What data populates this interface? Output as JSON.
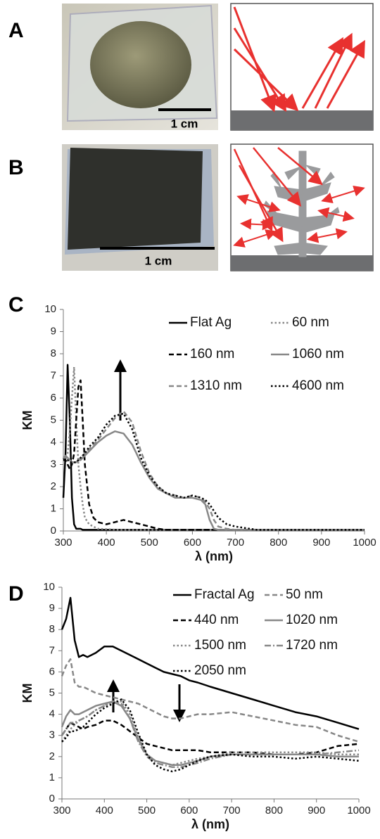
{
  "panels": [
    {
      "label": "A",
      "scale_bar": "1 cm"
    },
    {
      "label": "B",
      "scale_bar": "1 cm"
    }
  ],
  "chart_data": [
    {
      "type": "line",
      "label": "C",
      "ylabel": "KM",
      "xlabel": "λ (nm)",
      "xlim": [
        300,
        1000
      ],
      "xticks": [
        300,
        400,
        500,
        600,
        700,
        800,
        900,
        1000
      ],
      "ylim": [
        0,
        10
      ],
      "yticks": [
        0,
        1,
        2,
        3,
        4,
        5,
        6,
        7,
        8,
        9,
        10
      ],
      "legend": "top-right",
      "x": [
        300,
        305,
        310,
        315,
        320,
        325,
        330,
        335,
        340,
        345,
        350,
        360,
        370,
        380,
        400,
        420,
        440,
        460,
        480,
        500,
        520,
        540,
        560,
        580,
        600,
        620,
        630,
        640,
        650,
        660,
        680,
        700,
        750,
        800,
        900,
        1000
      ],
      "series": [
        {
          "name": "Flat Ag",
          "color": "#000000",
          "dash": "solid",
          "values": [
            1.5,
            3.5,
            7.5,
            5,
            1.5,
            0.3,
            0.1,
            0.1,
            0.1,
            0.05,
            0.05,
            0.05,
            0.05,
            0.05,
            0.05,
            0.05,
            0.05,
            0.05,
            0.05,
            0.05,
            0.05,
            0.05,
            0.05,
            0.05,
            0.05,
            0.05,
            0.05,
            0.05,
            0.05,
            0.05,
            0.05,
            0.05,
            0.05,
            0.05,
            0.05,
            0.05
          ]
        },
        {
          "name": "60 nm",
          "color": "#888888",
          "dash": "dotted",
          "values": [
            3.2,
            3.3,
            3.5,
            4.5,
            6,
            7.4,
            5,
            3,
            2,
            1.2,
            0.6,
            0.3,
            0.2,
            0.1,
            0.08,
            0.06,
            0.05,
            0.05,
            0.05,
            0.05,
            0.05,
            0.05,
            0.05,
            0.05,
            0.05,
            0.05,
            0.05,
            0.05,
            0.05,
            0.05,
            0.05,
            0.05,
            0.05,
            0.05,
            0.05,
            0.05
          ]
        },
        {
          "name": "160 nm",
          "color": "#000000",
          "dash": "dashed",
          "values": [
            3.3,
            3.2,
            3.0,
            2.8,
            3.0,
            3.5,
            5,
            6.5,
            6.8,
            5,
            3,
            1.2,
            0.6,
            0.4,
            0.3,
            0.4,
            0.5,
            0.4,
            0.3,
            0.2,
            0.1,
            0.05,
            0.05,
            0.05,
            0.05,
            0.05,
            0.05,
            0.05,
            0.05,
            0.05,
            0.05,
            0.05,
            0.05,
            0.05,
            0.05,
            0.05
          ]
        },
        {
          "name": "1060 nm",
          "color": "#888888",
          "dash": "solid",
          "values": [
            3.3,
            3.4,
            3.3,
            3.2,
            3.1,
            3.1,
            3.1,
            3.2,
            3.2,
            3.3,
            3.4,
            3.6,
            3.8,
            4.0,
            4.3,
            4.5,
            4.4,
            3.9,
            3.1,
            2.4,
            1.9,
            1.7,
            1.5,
            1.5,
            1.5,
            1.4,
            1.2,
            0.5,
            0.1,
            0.05,
            0.05,
            0.05,
            0.05,
            0.05,
            0.05,
            0.05
          ]
        },
        {
          "name": "1310 nm",
          "color": "#888888",
          "dash": "dashed",
          "values": [
            3.3,
            3.3,
            3.3,
            3.2,
            3.1,
            3.1,
            3.1,
            3.2,
            3.3,
            3.4,
            3.5,
            3.7,
            3.9,
            4.1,
            4.6,
            5.1,
            5.4,
            4.9,
            3.6,
            2.6,
            2.0,
            1.7,
            1.6,
            1.5,
            1.6,
            1.5,
            1.3,
            1.0,
            0.5,
            0.2,
            0.1,
            0.05,
            0.05,
            0.05,
            0.05,
            0.05
          ]
        },
        {
          "name": "4600 nm",
          "color": "#000000",
          "dash": "dotted",
          "values": [
            3.2,
            3.2,
            3.2,
            3.1,
            3.1,
            3.1,
            3.1,
            3.2,
            3.3,
            3.4,
            3.5,
            3.8,
            4.0,
            4.2,
            4.8,
            5.2,
            5.3,
            4.6,
            3.3,
            2.5,
            2.0,
            1.7,
            1.6,
            1.5,
            1.6,
            1.5,
            1.4,
            1.2,
            0.9,
            0.6,
            0.3,
            0.2,
            0.05,
            0.05,
            0.05,
            0.05
          ]
        }
      ]
    },
    {
      "type": "line",
      "label": "D",
      "ylabel": "KM",
      "xlabel": "λ (nm)",
      "xlim": [
        300,
        1000
      ],
      "xticks": [
        300,
        400,
        500,
        600,
        700,
        800,
        900,
        1000
      ],
      "ylim": [
        0,
        10
      ],
      "yticks": [
        0,
        1,
        2,
        3,
        4,
        5,
        6,
        7,
        8,
        9,
        10
      ],
      "legend": "top-right",
      "x": [
        300,
        310,
        320,
        330,
        340,
        350,
        360,
        380,
        400,
        420,
        440,
        460,
        480,
        500,
        520,
        540,
        560,
        580,
        600,
        620,
        650,
        700,
        750,
        800,
        850,
        900,
        950,
        1000
      ],
      "series": [
        {
          "name": "Fractal Ag",
          "color": "#000000",
          "dash": "solid",
          "values": [
            8,
            8.5,
            9.5,
            7.5,
            6.7,
            6.8,
            6.7,
            6.9,
            7.2,
            7.2,
            7.0,
            6.8,
            6.6,
            6.4,
            6.2,
            6.0,
            5.9,
            5.8,
            5.6,
            5.5,
            5.3,
            5.0,
            4.7,
            4.4,
            4.1,
            3.9,
            3.6,
            3.3
          ]
        },
        {
          "name": "50 nm",
          "color": "#888888",
          "dash": "dashed",
          "values": [
            5.8,
            6.3,
            6.6,
            5.5,
            5.3,
            5.3,
            5.2,
            5.0,
            4.9,
            4.8,
            4.7,
            4.6,
            4.5,
            4.3,
            4.1,
            3.9,
            3.8,
            3.8,
            3.9,
            4.0,
            4.0,
            4.1,
            3.9,
            3.7,
            3.5,
            3.4,
            3.0,
            2.7
          ]
        },
        {
          "name": "440 nm",
          "color": "#000000",
          "dash": "dashed",
          "values": [
            3.0,
            3.3,
            3.6,
            3.5,
            3.4,
            3.3,
            3.4,
            3.5,
            3.7,
            3.7,
            3.5,
            3.2,
            2.9,
            2.6,
            2.5,
            2.4,
            2.3,
            2.3,
            2.3,
            2.3,
            2.2,
            2.2,
            2.2,
            2.1,
            2.1,
            2.2,
            2.5,
            2.6
          ]
        },
        {
          "name": "1020 nm",
          "color": "#888888",
          "dash": "solid",
          "values": [
            3.4,
            3.9,
            4.2,
            4.0,
            4.0,
            4.1,
            4.2,
            4.4,
            4.5,
            4.6,
            4.4,
            3.8,
            2.8,
            2.1,
            1.8,
            1.7,
            1.6,
            1.6,
            1.7,
            1.8,
            2.0,
            2.1,
            2.1,
            2.1,
            2.1,
            2.1,
            2.0,
            2.0
          ]
        },
        {
          "name": "1500 nm",
          "color": "#888888",
          "dash": "dotted",
          "values": [
            2.7,
            3.0,
            3.3,
            3.5,
            3.7,
            3.8,
            3.9,
            4.2,
            4.4,
            4.6,
            4.6,
            4.0,
            2.9,
            2.1,
            1.8,
            1.7,
            1.6,
            1.7,
            1.8,
            1.9,
            2.0,
            2.2,
            2.2,
            2.2,
            2.2,
            2.2,
            2.1,
            2.1
          ]
        },
        {
          "name": "1720 nm",
          "color": "#888888",
          "dash": "dashdot",
          "values": [
            3.0,
            3.3,
            3.6,
            3.6,
            3.7,
            3.8,
            3.9,
            4.2,
            4.4,
            4.6,
            4.5,
            3.8,
            2.7,
            2.0,
            1.7,
            1.6,
            1.5,
            1.5,
            1.6,
            1.7,
            1.9,
            2.1,
            2.1,
            2.1,
            2.1,
            2.1,
            2.2,
            2.3
          ]
        },
        {
          "name": "2050 nm",
          "color": "#000000",
          "dash": "dotted",
          "values": [
            2.7,
            2.9,
            3.2,
            3.2,
            3.3,
            3.4,
            3.6,
            4.0,
            4.3,
            4.5,
            4.7,
            4.2,
            3.1,
            2.1,
            1.6,
            1.4,
            1.3,
            1.4,
            1.6,
            1.8,
            2.0,
            2.1,
            2.0,
            2.0,
            1.9,
            2.0,
            1.9,
            1.8
          ]
        }
      ]
    }
  ]
}
